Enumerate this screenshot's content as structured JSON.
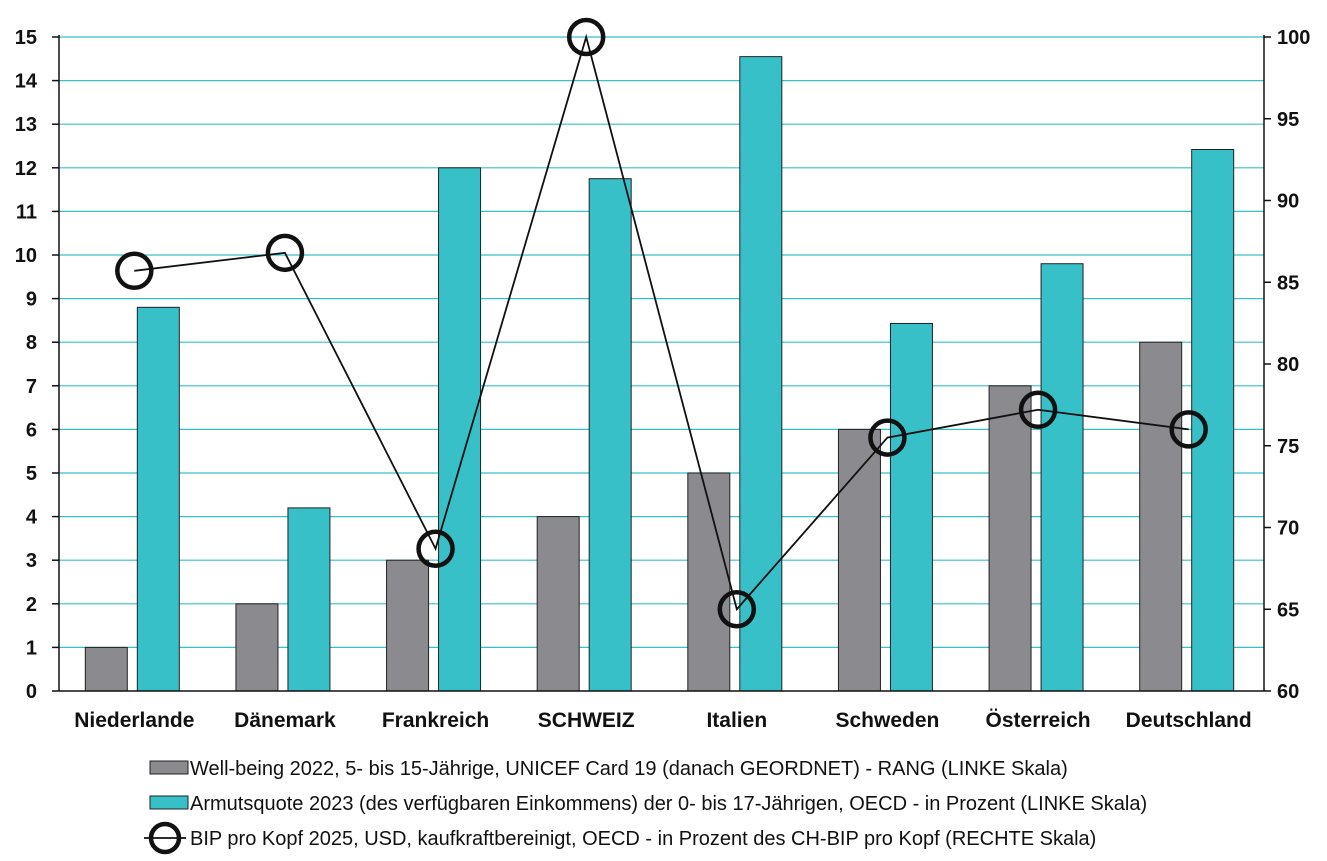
{
  "chart_data": {
    "type": "bar",
    "categories": [
      "Niederlande",
      "Dänemark",
      "Frankreich",
      "SCHWEIZ",
      "Italien",
      "Schweden",
      "Österreich",
      "Deutschland"
    ],
    "series": [
      {
        "name": "Well-being 2022, 5- bis 15-Jährige, UNICEF Card 19 (danach GEORDNET) - RANG (LINKE Skala)",
        "type": "bar",
        "axis": "left",
        "color": "#8a8a8f",
        "values": [
          1,
          2,
          3,
          4,
          5,
          6,
          7,
          8
        ]
      },
      {
        "name": "Armutsquote 2023 (des verfügbaren Einkommens) der 0- bis 17-Jährigen, OECD - in Prozent (LINKE Skala)",
        "type": "bar",
        "axis": "left",
        "color": "#38c0c8",
        "values": [
          8.8,
          4.2,
          12.0,
          11.75,
          14.55,
          8.43,
          9.8,
          12.42
        ]
      },
      {
        "name": "BIP pro Kopf 2025, USD, kaufkraftbereinigt, OECD - in Prozent des CH-BIP pro Kopf (RECHTE Skala)",
        "type": "line",
        "axis": "right",
        "color": "#111111",
        "values": [
          85.7,
          86.8,
          68.7,
          100,
          65.0,
          75.5,
          77.2,
          76.0
        ]
      }
    ],
    "yleft": {
      "min": 0,
      "max": 15,
      "ticks": [
        "0",
        "1",
        "2",
        "3",
        "4",
        "5",
        "6",
        "7",
        "8",
        "9",
        "10",
        "11",
        "12",
        "13",
        "14",
        "15"
      ]
    },
    "yright": {
      "min": 60,
      "max": 100,
      "ticks": [
        "60",
        "65",
        "70",
        "75",
        "80",
        "85",
        "90",
        "95",
        "100"
      ]
    },
    "grid": true,
    "legend_position": "bottom"
  }
}
